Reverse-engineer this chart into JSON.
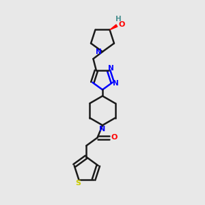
{
  "background_color": "#e8e8e8",
  "bond_color": "#1a1a1a",
  "nitrogen_color": "#0000ff",
  "oxygen_color": "#ff0000",
  "sulfur_color": "#cccc00",
  "teal_color": "#4a9090",
  "line_width": 1.8,
  "figsize": [
    3.0,
    3.0
  ],
  "dpi": 100,
  "xlim": [
    0,
    10
  ],
  "ylim": [
    0,
    10
  ]
}
